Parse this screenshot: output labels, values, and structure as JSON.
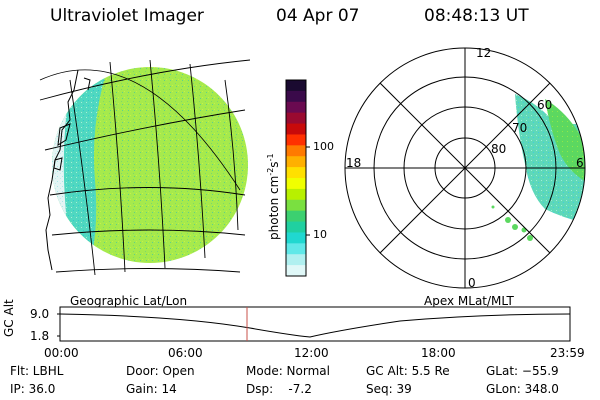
{
  "header": {
    "title": "Ultraviolet Imager",
    "date": "04 Apr 07",
    "time": "08:48:13 UT"
  },
  "colorbar": {
    "label": "photon cm",
    "label_exp1": "-2",
    "label_mid": "s",
    "label_exp2": "-1",
    "ticks": [
      "100",
      "10"
    ],
    "colors": [
      "#1a0a30",
      "#3a0a4a",
      "#6a0a50",
      "#9a0a30",
      "#c80a0a",
      "#ff3000",
      "#ff7a00",
      "#ffb000",
      "#ffe000",
      "#f0ff00",
      "#b8f000",
      "#7ae040",
      "#3cd070",
      "#20d0a0",
      "#20d8d0",
      "#60e8e8",
      "#b0f0f0",
      "#e0f8f8"
    ]
  },
  "polar_plot": {
    "mlt_labels": [
      "12",
      "18",
      "6",
      "0"
    ],
    "lat_labels": [
      "60",
      "70",
      "80"
    ]
  },
  "labels": {
    "left_panel": "Geographic Lat/Lon",
    "right_panel": "Apex MLat/MLT"
  },
  "gc_alt_chart": {
    "ylabel": "GC Alt",
    "yticks": [
      "9.0",
      "1.8"
    ],
    "xticks": [
      "00:00",
      "06:00",
      "12:00",
      "18:00",
      "23:59"
    ]
  },
  "status": {
    "flt": "Flt: LBHL",
    "ip": "IP: 36.0",
    "door": "Door: Open",
    "gain": "Gain: 14",
    "mode": "Mode: Normal",
    "dsp": "Dsp:    -7.2",
    "gcalt": "GC Alt: 5.5 Re",
    "seq": "Seq: 39",
    "glat": "GLat: −55.9",
    "glon": "GLon: 348.0"
  },
  "colors": {
    "image_green": "#9fe84a",
    "image_cyan": "#40d8c8",
    "image_light": "#d8f0f0",
    "marker": "#c8504a"
  }
}
